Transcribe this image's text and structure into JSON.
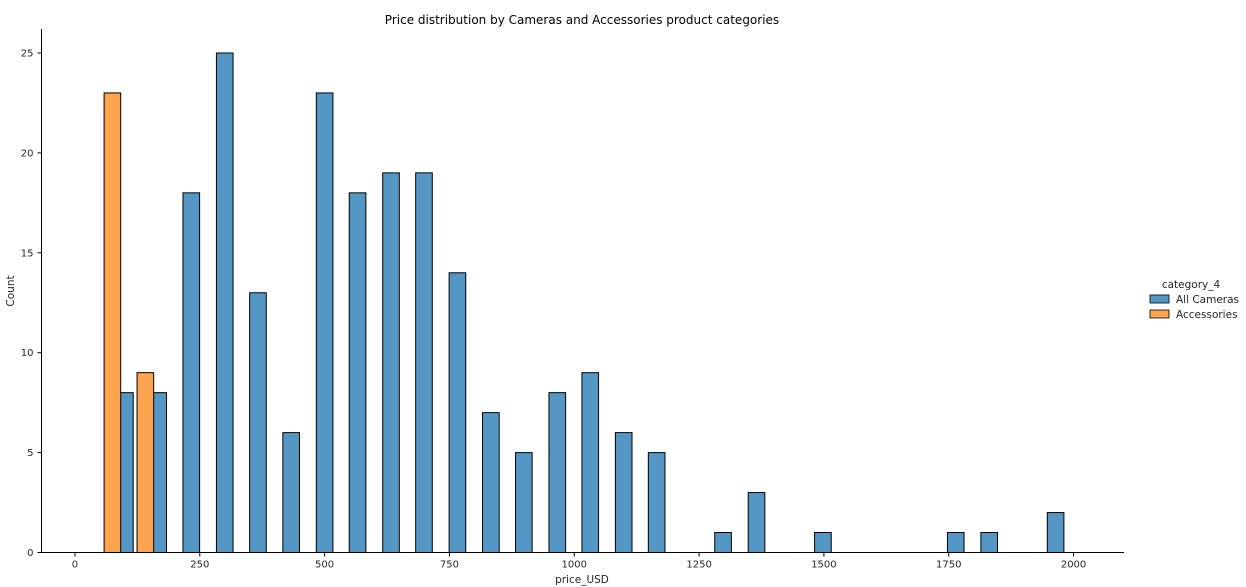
{
  "chart_data": {
    "type": "bar",
    "title": "Price distribution by Cameras and Accessories product categories",
    "xlabel": "price_USD",
    "ylabel": "Count",
    "xlim": [
      -67,
      2101
    ],
    "ylim": [
      0,
      26.2
    ],
    "xticks": [
      0,
      250,
      500,
      750,
      1000,
      1250,
      1500,
      1750,
      2000
    ],
    "yticks": [
      0,
      5,
      10,
      15,
      20,
      25
    ],
    "bar_width": 33.3,
    "legend": {
      "title": "category_4",
      "placement": "center-right"
    },
    "grid": false,
    "series": [
      {
        "name": "All Cameras",
        "color": "#5497c5",
        "x": [
          100,
          166.7,
          233,
          300,
          366.5,
          433,
          500,
          566,
          633,
          699,
          766,
          833,
          899,
          966,
          1032,
          1099,
          1165,
          1298,
          1365,
          1498,
          1764,
          1831,
          1964
        ],
        "values": [
          8,
          8,
          18,
          25,
          13,
          6,
          23,
          18,
          19,
          19,
          14,
          7,
          5,
          8,
          9,
          6,
          5,
          1,
          3,
          1,
          1,
          1,
          2
        ]
      },
      {
        "name": "Accessories",
        "color": "#fca450",
        "x": [
          75,
          141
        ],
        "values": [
          23,
          9
        ]
      }
    ]
  }
}
